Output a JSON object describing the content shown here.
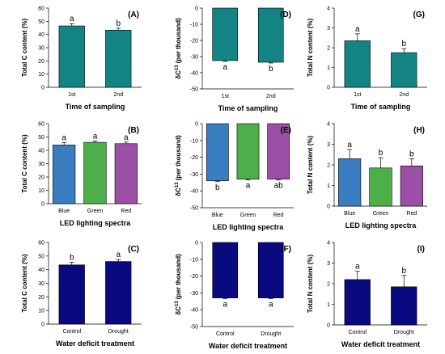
{
  "chart_data": [
    {
      "id": "A",
      "panel_label": "(A)",
      "type": "bar",
      "ylabel": "Total C content (%)",
      "xlabel": "Time of sampling",
      "ylim": [
        0,
        60
      ],
      "yticks": [
        0,
        10,
        20,
        30,
        40,
        50,
        60
      ],
      "categories": [
        "1st",
        "2nd"
      ],
      "values": [
        46.5,
        43.3
      ],
      "errors": [
        1.8,
        1.5
      ],
      "letters": [
        "a",
        "b"
      ],
      "colors": [
        "#138383",
        "#138383"
      ]
    },
    {
      "id": "D",
      "panel_label": "(D)",
      "type": "bar",
      "ylabel": "δC13 (per thousand)",
      "ylabel_main": "δC",
      "ylabel_sup": "13",
      "ylabel_rest": " (per thousand)",
      "xlabel": "Time of sampling",
      "ylim": [
        -50,
        0
      ],
      "yticks": [
        0,
        -10,
        -20,
        -30,
        -40,
        -50
      ],
      "categories": [
        "1st",
        "2nd"
      ],
      "values": [
        -32.5,
        -33.5
      ],
      "errors": [
        0.5,
        0.5
      ],
      "letters": [
        "a",
        "b"
      ],
      "colors": [
        "#138383",
        "#138383"
      ]
    },
    {
      "id": "G",
      "panel_label": "(G)",
      "type": "bar",
      "ylabel": "Total N content (%)",
      "xlabel": "Time of sampling",
      "ylim": [
        0,
        4
      ],
      "yticks": [
        0,
        1,
        2,
        3,
        4
      ],
      "categories": [
        "1st",
        "2nd"
      ],
      "values": [
        2.35,
        1.75
      ],
      "errors": [
        0.35,
        0.2
      ],
      "letters": [
        "a",
        "b"
      ],
      "colors": [
        "#138383",
        "#138383"
      ]
    },
    {
      "id": "B",
      "panel_label": "(B)",
      "type": "bar",
      "ylabel": "Total C content (%)",
      "xlabel": "LED lighting spectra",
      "ylim": [
        0,
        60
      ],
      "yticks": [
        0,
        10,
        20,
        30,
        40,
        50,
        60
      ],
      "categories": [
        "Blue",
        "Green",
        "Red"
      ],
      "values": [
        44,
        46,
        45
      ],
      "errors": [
        1.8,
        1.0,
        1.2
      ],
      "letters": [
        "a",
        "a",
        "a"
      ],
      "colors": [
        "#3a7dc0",
        "#4daf4a",
        "#9b4fa6"
      ]
    },
    {
      "id": "E",
      "panel_label": "(E)",
      "type": "bar",
      "ylabel": "δC13 (per thousand)",
      "ylabel_main": "δC",
      "ylabel_sup": "13",
      "ylabel_rest": " (per thousand)",
      "xlabel": "LED lighting spectra",
      "ylim": [
        -50,
        0
      ],
      "yticks": [
        0,
        -10,
        -20,
        -30,
        -40,
        -50
      ],
      "categories": [
        "Blue",
        "Green",
        "Red"
      ],
      "values": [
        -34,
        -33,
        -33
      ],
      "errors": [
        0.5,
        0.5,
        0.5
      ],
      "letters": [
        "b",
        "a",
        "ab"
      ],
      "colors": [
        "#3a7dc0",
        "#4daf4a",
        "#9b4fa6"
      ]
    },
    {
      "id": "H",
      "panel_label": "(H)",
      "type": "bar",
      "ylabel": "Total N content (%)",
      "xlabel": "LED lighting spectra",
      "ylim": [
        0,
        4
      ],
      "yticks": [
        0,
        1,
        2,
        3,
        4
      ],
      "categories": [
        "Blue",
        "Green",
        "Red"
      ],
      "values": [
        2.3,
        1.85,
        1.95
      ],
      "errors": [
        0.45,
        0.5,
        0.35
      ],
      "letters": [
        "a",
        "b",
        "b"
      ],
      "colors": [
        "#3a7dc0",
        "#4daf4a",
        "#9b4fa6"
      ]
    },
    {
      "id": "C",
      "panel_label": "(C)",
      "type": "bar",
      "ylabel": "Total C content (%)",
      "xlabel": "Water deficit treatment",
      "ylim": [
        0,
        60
      ],
      "yticks": [
        0,
        10,
        20,
        30,
        40,
        50,
        60
      ],
      "categories": [
        "Control",
        "Drought"
      ],
      "values": [
        43.5,
        46
      ],
      "errors": [
        2.0,
        1.5
      ],
      "letters": [
        "b",
        "a"
      ],
      "colors": [
        "#0a0a80",
        "#0a0a80"
      ]
    },
    {
      "id": "F",
      "panel_label": "(F)",
      "type": "bar",
      "ylabel": "δC13 (per thousand)",
      "ylabel_main": "δC",
      "ylabel_sup": "13",
      "ylabel_rest": " (per thousand)",
      "xlabel": "Water deficit treatment",
      "ylim": [
        -50,
        0
      ],
      "yticks": [
        0,
        -10,
        -20,
        -30,
        -40,
        -50
      ],
      "categories": [
        "Control",
        "Drought"
      ],
      "values": [
        -33,
        -33
      ],
      "errors": [
        0.5,
        0.5
      ],
      "letters": [
        "a",
        "a"
      ],
      "colors": [
        "#0a0a80",
        "#0a0a80"
      ]
    },
    {
      "id": "I",
      "panel_label": "(I)",
      "type": "bar",
      "ylabel": "Total N content (%)",
      "xlabel": "Water deficit treatment",
      "ylim": [
        0,
        4
      ],
      "yticks": [
        0,
        1,
        2,
        3,
        4
      ],
      "categories": [
        "Control",
        "Drought"
      ],
      "values": [
        2.2,
        1.85
      ],
      "errors": [
        0.4,
        0.55
      ],
      "letters": [
        "a",
        "b"
      ],
      "colors": [
        "#0a0a80",
        "#0a0a80"
      ]
    }
  ]
}
